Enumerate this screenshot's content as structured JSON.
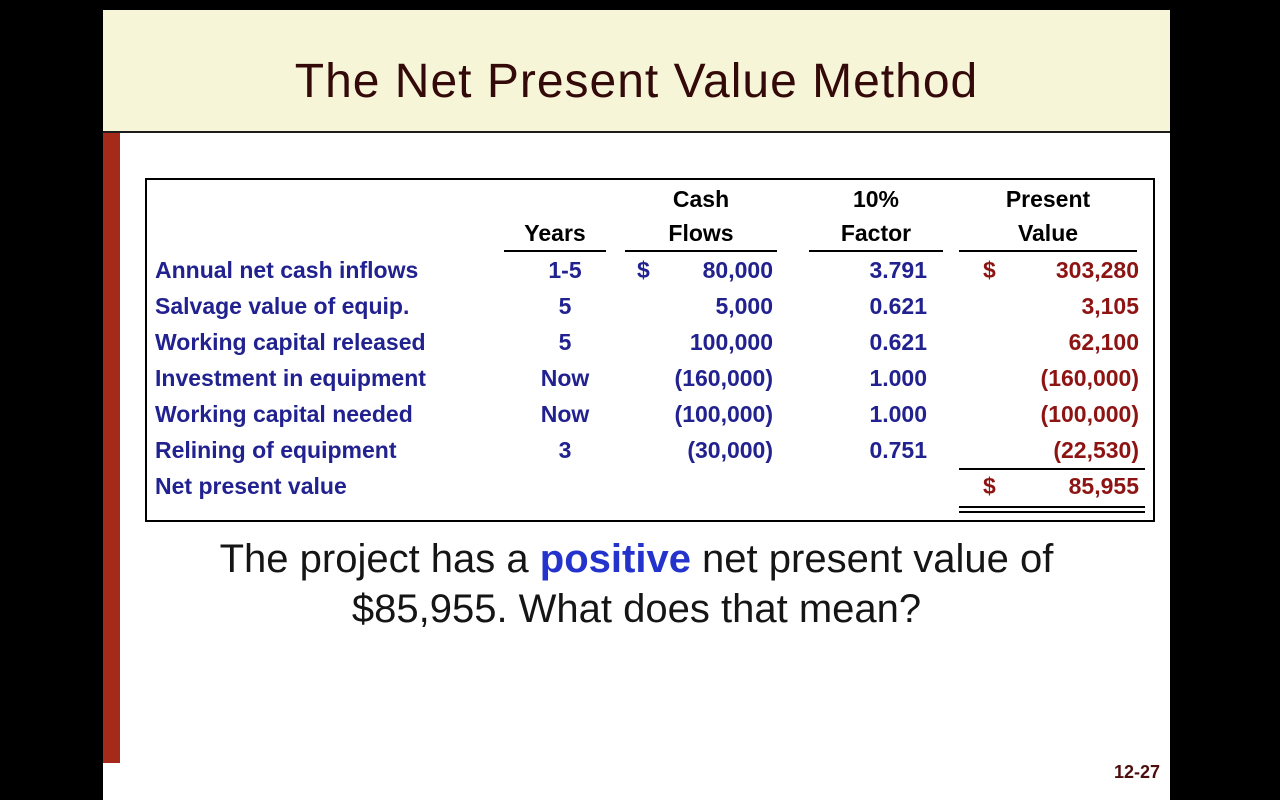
{
  "slide": {
    "title": "The Net Present Value Method",
    "page_number": "12-27"
  },
  "caption": {
    "line1_prefix": "The project has a ",
    "highlight": "positive",
    "line1_suffix": " net present value of",
    "line2": "$85,955. What does that mean?"
  },
  "table": {
    "headers": {
      "years": [
        "",
        "Years"
      ],
      "cash": [
        "Cash",
        "Flows"
      ],
      "factor": [
        "10%",
        "Factor"
      ],
      "pv": [
        "Present",
        "Value"
      ]
    },
    "rows": [
      {
        "label": "Annual net cash inflows",
        "years": "1-5",
        "cash_dollar": "$",
        "cash": "80,000",
        "factor": "3.791",
        "pv_dollar": "$",
        "pv": "303,280"
      },
      {
        "label": "Salvage value of equip.",
        "years": "5",
        "cash_dollar": "",
        "cash": "5,000",
        "factor": "0.621",
        "pv_dollar": "",
        "pv": "3,105"
      },
      {
        "label": "Working capital released",
        "years": "5",
        "cash_dollar": "",
        "cash": "100,000",
        "factor": "0.621",
        "pv_dollar": "",
        "pv": "62,100"
      },
      {
        "label": "Investment in equipment",
        "years": "Now",
        "cash_dollar": "",
        "cash": "(160,000)",
        "factor": "1.000",
        "pv_dollar": "",
        "pv": "(160,000)"
      },
      {
        "label": "Working capital needed",
        "years": "Now",
        "cash_dollar": "",
        "cash": "(100,000)",
        "factor": "1.000",
        "pv_dollar": "",
        "pv": "(100,000)"
      },
      {
        "label": "Relining of equipment",
        "years": "3",
        "cash_dollar": "",
        "cash": "(30,000)",
        "factor": "0.751",
        "pv_dollar": "",
        "pv": "(22,530)"
      },
      {
        "label": "Net present value",
        "years": "",
        "cash_dollar": "",
        "cash": "",
        "factor": "",
        "pv_dollar": "$",
        "pv": "85,955"
      }
    ]
  },
  "colors": {
    "background": "#000000",
    "banner": "#F6F5D8",
    "title_text": "#330909",
    "accent_bar": "#A52A19",
    "table_label": "#21218F",
    "present_value_text": "#8E1414",
    "highlight_blue": "#2433CC",
    "caption_text": "#151515",
    "page_number_text": "#4D0D0D"
  }
}
